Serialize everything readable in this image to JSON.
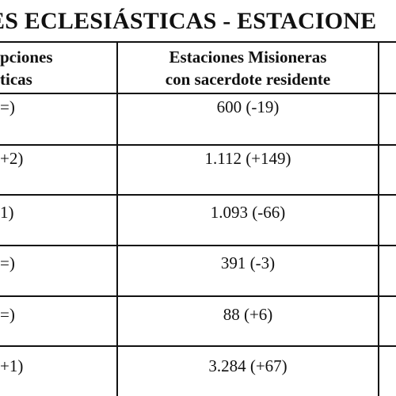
{
  "title": "ES ECLESIÁSTICAS - ESTACIONE",
  "header": {
    "col1_line1": "pciones",
    "col1_line2": "ticas",
    "col2_line1": "Estaciones Misioneras",
    "col2_line2": "con sacerdote residente"
  },
  "rows": [
    {
      "col1": "=)",
      "col2": "600 (-19)"
    },
    {
      "col1": "+2)",
      "col2": "1.112 (+149)"
    },
    {
      "col1": "1)",
      "col2": "1.093 (-66)"
    },
    {
      "col1": "=)",
      "col2": "391 (-3)"
    },
    {
      "col1": "=)",
      "col2": "88 (+6)"
    },
    {
      "col1": "+1)",
      "col2": "3.284 (+67)"
    }
  ]
}
